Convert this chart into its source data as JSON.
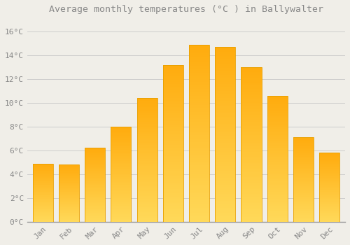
{
  "title": "Average monthly temperatures (°C ) in Ballywalter",
  "months": [
    "Jan",
    "Feb",
    "Mar",
    "Apr",
    "May",
    "Jun",
    "Jul",
    "Aug",
    "Sep",
    "Oct",
    "Nov",
    "Dec"
  ],
  "temperatures": [
    4.9,
    4.8,
    6.2,
    8.0,
    10.4,
    13.2,
    14.9,
    14.7,
    13.0,
    10.6,
    7.1,
    5.8
  ],
  "bar_color_bottom": "#FFCC55",
  "bar_color_top": "#FFAA00",
  "bar_edge_color": "#E8A000",
  "background_color": "#F0EEE8",
  "grid_color": "#CCCCCC",
  "text_color": "#888888",
  "ylim": [
    0,
    17
  ],
  "yticks": [
    0,
    2,
    4,
    6,
    8,
    10,
    12,
    14,
    16
  ],
  "title_fontsize": 9.5,
  "tick_fontsize": 8
}
